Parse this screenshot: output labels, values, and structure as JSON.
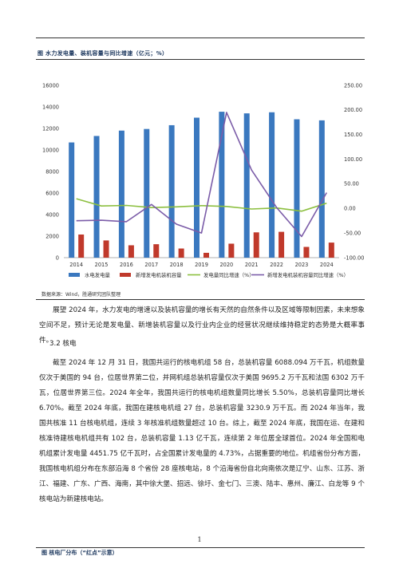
{
  "figure_title": "图  水力发电量、装机容量与同比增速（亿元；%）",
  "source_note": "数据来源：Wind，胜通研究团队整理",
  "paragraph_1": "展望 2024 年，水力发电的增速以及装机容量的增长有天然的自然条件以及区域等限制因素，未来想象空间不足，预计无论是发电量、新增装机容量以及行业内企业的经营状况继续维持稳定的态势是大概率事件。",
  "section_heading": "3.2  核电",
  "paragraph_2": "截至 2024 年 12 月 31 日，我国共运行的核电机组 58 台，总装机容量 6088.094 万千瓦，机组数量仅次于美国的 94 台，位居世界第二位，并网机组总装机容量仅次于美国 9695.2 万千瓦和法国 6302 万千瓦，位居世界第三位。2024 年全年，我国共运行的核电机组数量同比增长 5.50%，总装机容量同比增长 6.70%。截至 2024 年底，我国在建核电机组 27 台，总装机容量 3230.9 万千瓦。而 2024 年当年，我国共核准 11 台核电机组，连续 3 年核准机组数量超过 10 台。综上，截至 2024 年底，我国在运、在建和核准待建核电机组共有 102 台，总装机容量 1.13 亿千瓦，连续第 2 年位居全球首位。2024 年全国和电机组累计发电量 4451.75 亿千瓦时，占全国累计发电量的 4.73%，占据重要的地位。机组省份分布方面，我国核电机组分布在东部沿海 8 个省份 28 座核电站，8 个沿海省份自北向南依次是辽宁、山东、江苏、浙江、福建、广东、广西、海南，其中徐大堡、招远、徐圩、金七门、三澳、陆丰、惠州、廉江、白龙等 9 个核电站为新建核电站。",
  "figure2_title": "图  核电厂分布（“红点”示意）",
  "page_number": "1",
  "colors": {
    "generation_bar": "#3a78bf",
    "capacity_bar": "#c0392b",
    "generation_growth_line": "#8cbf3f",
    "capacity_growth_line": "#7b5ca8",
    "rule": "#333333",
    "title": "#1f3a60"
  },
  "chart_data": {
    "type": "bar",
    "categories": [
      "2014",
      "2015",
      "2016",
      "2017",
      "2018",
      "2019",
      "2020",
      "2021",
      "2022",
      "2023",
      "2024"
    ],
    "series": [
      {
        "name": "水电发电量",
        "kind": "bar",
        "axis": "left",
        "values": [
          10700,
          11300,
          11800,
          11950,
          12300,
          13000,
          13550,
          13400,
          13500,
          12850,
          12750
        ]
      },
      {
        "name": "新增发电机装机容量",
        "kind": "bar",
        "axis": "left",
        "values": [
          2150,
          1600,
          1150,
          1250,
          850,
          450,
          1300,
          2350,
          2400,
          1000,
          1400
        ]
      },
      {
        "name": "发电量同比增速（%）",
        "kind": "line",
        "axis": "right",
        "values": [
          19.7,
          5.0,
          6.2,
          1.7,
          3.2,
          5.7,
          4.1,
          -1.1,
          1.0,
          -5.6,
          10.7
        ]
      },
      {
        "name": "新增发电机装机容量同比增速（%）",
        "kind": "line",
        "axis": "right",
        "values": [
          -25,
          -24,
          -27,
          8,
          -32,
          -50,
          195,
          78,
          2,
          -57,
          32
        ]
      }
    ],
    "y_left": {
      "min": 0,
      "max": 16000,
      "ticks": [
        "0",
        "2000",
        "4000",
        "6000",
        "8000",
        "10000",
        "12000",
        "14000",
        "16000"
      ]
    },
    "y_right": {
      "min": -100,
      "max": 250,
      "ticks": [
        "-100.00",
        "-50.00",
        "0.00",
        "50.00",
        "100.00",
        "150.00",
        "200.00",
        "250.00"
      ]
    },
    "grid": false,
    "legend_position": "bottom"
  }
}
